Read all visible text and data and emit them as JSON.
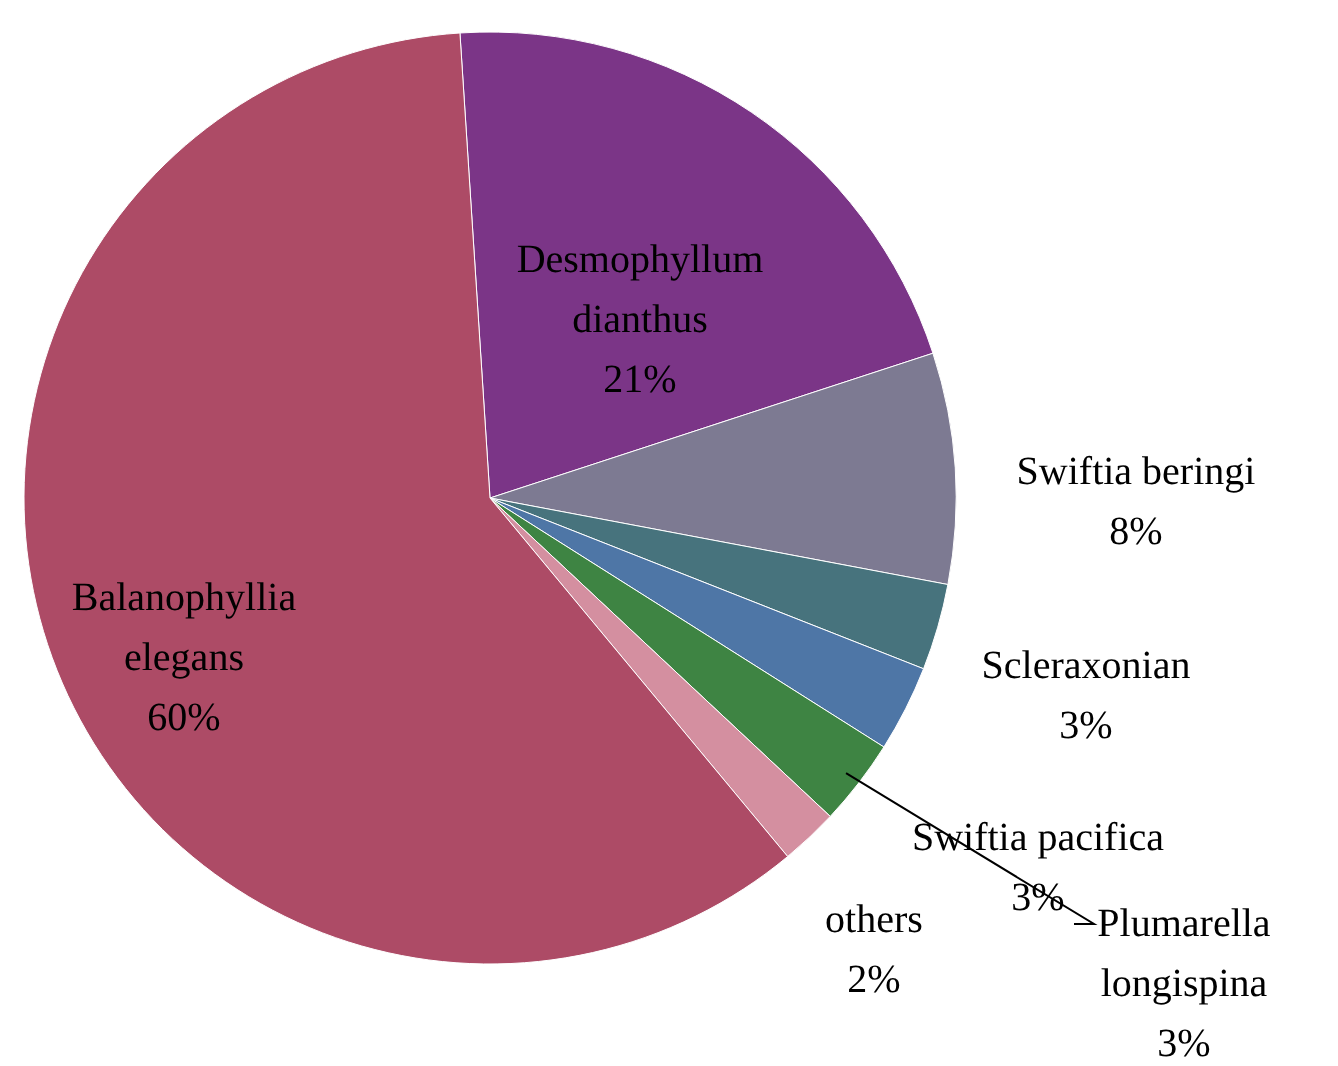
{
  "chart_data": {
    "type": "pie",
    "categories": [
      "Desmophyllum dianthus",
      "Swiftia beringi",
      "Scleraxonian",
      "Swiftia pacifica",
      "Plumarella longispina",
      "others",
      "Balanophyllia elegans"
    ],
    "values": [
      21,
      8,
      3,
      3,
      3,
      2,
      60
    ],
    "value_labels": [
      "21%",
      "8%",
      "3%",
      "3%",
      "3%",
      "2%",
      "60%"
    ],
    "colors": [
      "#7b3587",
      "#7d7a92",
      "#47737d",
      "#4e76a6",
      "#3e8443",
      "#d48fa0",
      "#ad4b66"
    ]
  }
}
